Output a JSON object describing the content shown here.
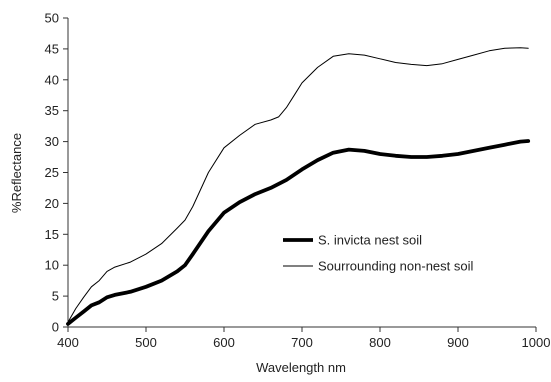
{
  "chart_data": {
    "type": "line",
    "title": "",
    "xlabel": "Wavelength nm",
    "ylabel": "%Reflectance",
    "xlim": [
      400,
      1000
    ],
    "ylim": [
      0,
      50
    ],
    "x_ticks": [
      "400",
      "500",
      "600",
      "700",
      "800",
      "900",
      "1000"
    ],
    "y_ticks": [
      "0",
      "5",
      "10",
      "15",
      "20",
      "25",
      "30",
      "35",
      "40",
      "45",
      "50"
    ],
    "grid": false,
    "legend_position": "center-right",
    "series": [
      {
        "name": "S. invicta nest soil",
        "style": "thick",
        "color": "#000000",
        "x": [
          400,
          410,
          420,
          430,
          440,
          450,
          460,
          480,
          500,
          520,
          540,
          550,
          560,
          580,
          600,
          620,
          640,
          660,
          680,
          700,
          720,
          740,
          760,
          780,
          800,
          820,
          840,
          860,
          880,
          900,
          920,
          940,
          960,
          980,
          990
        ],
        "y": [
          0.5,
          1.5,
          2.5,
          3.5,
          4.0,
          4.8,
          5.2,
          5.7,
          6.5,
          7.5,
          9.0,
          10.0,
          11.8,
          15.5,
          18.5,
          20.2,
          21.5,
          22.5,
          23.8,
          25.5,
          27.0,
          28.2,
          28.7,
          28.5,
          28.0,
          27.7,
          27.5,
          27.5,
          27.7,
          28.0,
          28.5,
          29.0,
          29.5,
          30.0,
          30.1
        ]
      },
      {
        "name": "Sourrounding non-nest soil",
        "style": "thin",
        "color": "#000000",
        "x": [
          400,
          410,
          420,
          430,
          440,
          450,
          460,
          480,
          500,
          520,
          540,
          550,
          560,
          580,
          600,
          620,
          640,
          660,
          670,
          680,
          690,
          700,
          720,
          740,
          760,
          780,
          800,
          820,
          840,
          860,
          880,
          900,
          920,
          940,
          960,
          980,
          990
        ],
        "y": [
          0.8,
          3.0,
          4.8,
          6.5,
          7.5,
          9.0,
          9.7,
          10.5,
          11.8,
          13.5,
          16.0,
          17.3,
          19.5,
          25.0,
          29.0,
          31.0,
          32.8,
          33.5,
          34.0,
          35.5,
          37.5,
          39.5,
          42.0,
          43.8,
          44.2,
          44.0,
          43.4,
          42.8,
          42.5,
          42.3,
          42.6,
          43.3,
          44.0,
          44.7,
          45.1,
          45.2,
          45.1
        ]
      }
    ]
  }
}
